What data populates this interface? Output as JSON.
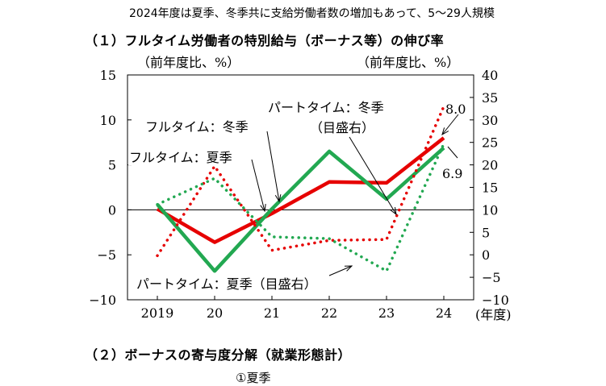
{
  "header": "2024年度は夏季、冬季共に支給労働者数の増加もあって、5〜29人規模",
  "section1_title": "（１）フルタイム労働者の特別給与（ボーナス等）の伸び率",
  "section2_title": "（２）ボーナスの寄与度分解（就業形態計）",
  "subsection_title": "①夏季",
  "chart_data": {
    "type": "line",
    "x": [
      "2019",
      "20",
      "21",
      "22",
      "23",
      "24"
    ],
    "xlabel_unit": "(年度)",
    "left_axis": {
      "label": "（前年度比、%）",
      "ylim": [
        -10,
        15
      ],
      "ticks": [
        "15",
        "10",
        "5",
        "0",
        "−5",
        "−10"
      ]
    },
    "right_axis": {
      "label": "（前年度比、%）",
      "ylim": [
        -10,
        40
      ],
      "ticks": [
        "40",
        "35",
        "30",
        "25",
        "20",
        "15",
        "10",
        "5",
        "0",
        "−5",
        "−10"
      ]
    },
    "series": [
      {
        "name": "フルタイム：冬季",
        "axis": "left",
        "style": "solid",
        "color": "#e60000",
        "values": [
          0.1,
          -3.6,
          -0.4,
          3.1,
          3.0,
          8.0
        ]
      },
      {
        "name": "フルタイム：夏季",
        "axis": "left",
        "style": "solid",
        "color": "#22a851",
        "values": [
          0.6,
          -6.8,
          0.1,
          6.5,
          1.2,
          6.9
        ]
      },
      {
        "name": "パートタイム：冬季（目盛右）",
        "axis": "right",
        "style": "dotted",
        "color": "#e60000",
        "values": [
          -0.2,
          19.7,
          1.0,
          3.2,
          3.4,
          33.0
        ]
      },
      {
        "name": "パートタイム：夏季（目盛右）",
        "axis": "right",
        "style": "dotted",
        "color": "#22a851",
        "values": [
          11.2,
          17.0,
          4.0,
          3.6,
          -3.6,
          24.7
        ]
      }
    ],
    "annotations": {
      "fulltime_winter": "フルタイム：冬季",
      "fulltime_summer": "フルタイム：夏季",
      "parttime_winter_line1": "パートタイム：冬季",
      "parttime_winter_line2": "（目盛右）",
      "parttime_summer": "パートタイム：夏季（目盛右）",
      "label_80": "8.0",
      "label_69": "6.9"
    },
    "colors": {
      "red": "#e60000",
      "green": "#22a851"
    },
    "grid": false
  }
}
